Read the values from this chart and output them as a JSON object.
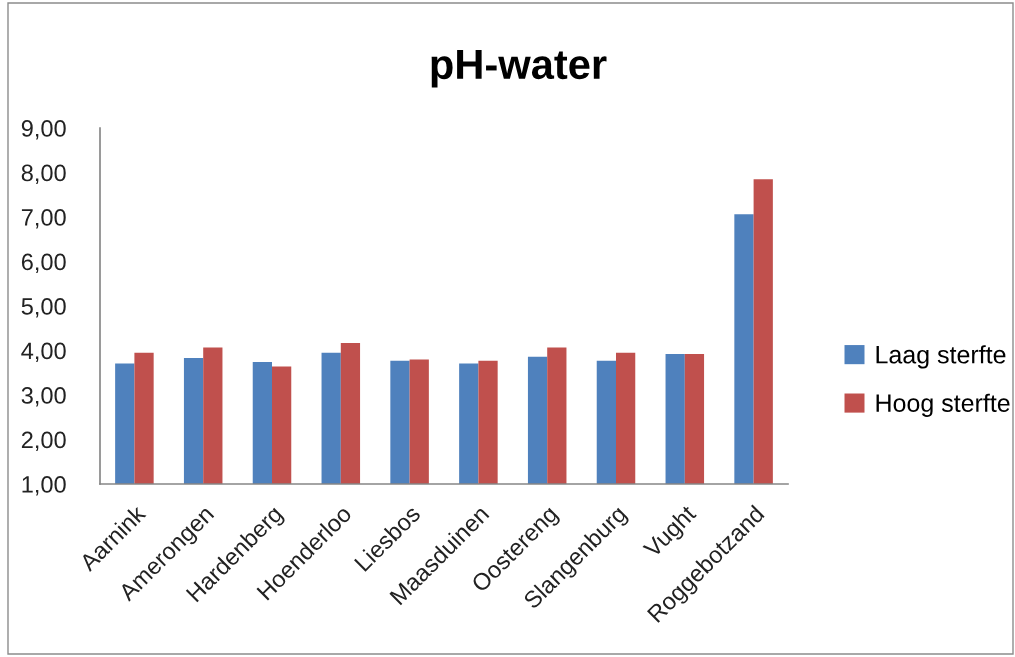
{
  "chart_data": {
    "type": "bar",
    "title": "pH-water",
    "categories": [
      "Aarnink",
      "Amerongen",
      "Hardenberg",
      "Hoenderloo",
      "Liesbos",
      "Maasduinen",
      "Oostereng",
      "Slangenburg",
      "Vught",
      "Roggebotzand"
    ],
    "series": [
      {
        "name": "Laag sterfte",
        "color": "#4f81bd",
        "values": [
          3.71,
          3.83,
          3.74,
          3.95,
          3.77,
          3.71,
          3.86,
          3.77,
          3.92,
          7.06
        ]
      },
      {
        "name": "Hoog sterfte",
        "color": "#c0504d",
        "values": [
          3.95,
          4.07,
          3.64,
          4.17,
          3.8,
          3.77,
          4.07,
          3.95,
          3.92,
          7.85
        ]
      }
    ],
    "ylim": [
      1,
      9
    ],
    "yticks": [
      {
        "value": 1,
        "label": "1,00"
      },
      {
        "value": 2,
        "label": "2,00"
      },
      {
        "value": 3,
        "label": "3,00"
      },
      {
        "value": 4,
        "label": "4,00"
      },
      {
        "value": 5,
        "label": "5,00"
      },
      {
        "value": 6,
        "label": "6,00"
      },
      {
        "value": 7,
        "label": "7,00"
      },
      {
        "value": 8,
        "label": "8,00"
      },
      {
        "value": 9,
        "label": "9,00"
      }
    ],
    "legend": "right"
  }
}
